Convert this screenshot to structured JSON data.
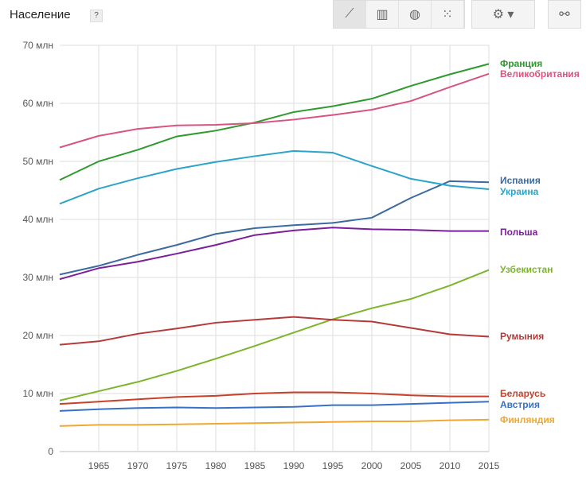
{
  "header": {
    "title": "Население",
    "help": "?"
  },
  "toolbar": {
    "icons": [
      "line-chart-icon",
      "bar-chart-icon",
      "map-icon",
      "scatter-icon"
    ],
    "settings": "gear-icon",
    "link": "link-icon"
  },
  "chart_data": {
    "type": "line",
    "title": "Население",
    "x": [
      1960,
      1965,
      1970,
      1975,
      1980,
      1985,
      1990,
      1995,
      2000,
      2005,
      2010,
      2015
    ],
    "xticks": [
      "1965",
      "1970",
      "1975",
      "1980",
      "1985",
      "1990",
      "1995",
      "2000",
      "2005",
      "2010",
      "2015"
    ],
    "yticks": [
      "0",
      "10 млн",
      "20 млн",
      "30 млн",
      "40 млн",
      "50 млн",
      "60 млн",
      "70 млн"
    ],
    "ylim": [
      0,
      70000000
    ],
    "xlim": [
      1960,
      2015
    ],
    "grid": true,
    "legend": "right, labels at line ends",
    "series": [
      {
        "name": "Франция",
        "color": "#2e9a2e",
        "values": [
          46.8,
          50.0,
          52.0,
          54.3,
          55.3,
          56.7,
          58.5,
          59.5,
          60.8,
          63.0,
          65.0,
          66.8
        ]
      },
      {
        "name": "Великобритания",
        "color": "#d9547e",
        "values": [
          52.4,
          54.4,
          55.6,
          56.2,
          56.3,
          56.6,
          57.2,
          58.0,
          58.9,
          60.4,
          62.8,
          65.1
        ]
      },
      {
        "name": "Испания",
        "color": "#3d6aa0",
        "values": [
          30.5,
          32.0,
          33.9,
          35.6,
          37.5,
          38.5,
          39.0,
          39.4,
          40.3,
          43.7,
          46.6,
          46.4
        ]
      },
      {
        "name": "Украина",
        "color": "#2aa4c8",
        "values": [
          42.7,
          45.3,
          47.1,
          48.7,
          49.9,
          50.9,
          51.8,
          51.5,
          49.2,
          47.0,
          45.8,
          45.2
        ]
      },
      {
        "name": "Польша",
        "color": "#7b1f9a",
        "values": [
          29.7,
          31.6,
          32.7,
          34.1,
          35.6,
          37.3,
          38.1,
          38.6,
          38.3,
          38.2,
          38.0,
          38.0
        ]
      },
      {
        "name": "Узбекистан",
        "color": "#7cb52a",
        "values": [
          8.8,
          10.4,
          12.0,
          13.9,
          16.0,
          18.2,
          20.5,
          22.8,
          24.7,
          26.3,
          28.6,
          31.3
        ]
      },
      {
        "name": "Румыния",
        "color": "#b53a3a",
        "values": [
          18.4,
          19.0,
          20.3,
          21.2,
          22.2,
          22.7,
          23.2,
          22.7,
          22.4,
          21.3,
          20.2,
          19.8
        ]
      },
      {
        "name": "Беларусь",
        "color": "#c8402a",
        "values": [
          8.2,
          8.6,
          9.0,
          9.4,
          9.6,
          10.0,
          10.2,
          10.2,
          10.0,
          9.7,
          9.5,
          9.5
        ]
      },
      {
        "name": "Австрия",
        "color": "#3870c8",
        "values": [
          7.0,
          7.3,
          7.5,
          7.6,
          7.5,
          7.6,
          7.7,
          8.0,
          8.0,
          8.2,
          8.4,
          8.6
        ]
      },
      {
        "name": "Финляндия",
        "color": "#f0a830",
        "values": [
          4.4,
          4.6,
          4.6,
          4.7,
          4.8,
          4.9,
          5.0,
          5.1,
          5.2,
          5.2,
          5.4,
          5.5
        ]
      }
    ],
    "value_unit": "млн"
  }
}
